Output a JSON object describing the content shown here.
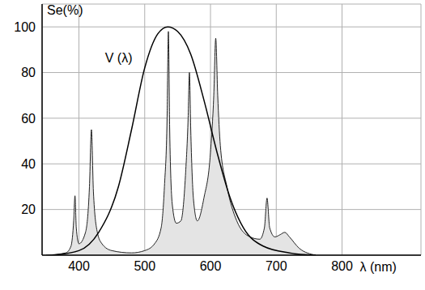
{
  "chart_data": {
    "type": "line",
    "y_label": "Se(%)",
    "x_label": "λ (nm)",
    "xlim": [
      344,
      920
    ],
    "xticks": [
      400,
      500,
      600,
      700,
      800
    ],
    "ylim": [
      0,
      110
    ],
    "yticks": [
      20,
      40,
      60,
      80,
      100
    ],
    "grid": true,
    "series": [
      {
        "type": "area",
        "color": "#222222",
        "x": [
          350,
          380,
          388,
          392,
          394,
          396,
          400,
          410,
          416,
          419,
          422,
          428,
          435,
          450,
          480,
          500,
          515,
          525,
          530,
          534,
          536,
          538,
          542,
          548,
          555,
          562,
          566,
          568,
          570,
          574,
          580,
          590,
          600,
          605,
          608,
          611,
          615,
          625,
          640,
          660,
          675,
          682,
          686,
          690,
          698,
          706,
          713,
          720,
          735,
          760
        ],
        "values": [
          0,
          1,
          4,
          15,
          26,
          12,
          5,
          10,
          30,
          55,
          28,
          10,
          5,
          2,
          1,
          2,
          5,
          12,
          30,
          60,
          98,
          55,
          22,
          14,
          15,
          35,
          60,
          80,
          55,
          25,
          15,
          25,
          45,
          70,
          95,
          70,
          48,
          30,
          15,
          8,
          7,
          12,
          25,
          12,
          8,
          9,
          10,
          8,
          3,
          0
        ]
      },
      {
        "type": "line",
        "name": "V (λ)",
        "color": "#000000",
        "x": [
          360,
          400,
          430,
          460,
          480,
          500,
          520,
          535,
          550,
          570,
          590,
          610,
          630,
          650,
          680,
          720,
          760
        ],
        "values": [
          0,
          2,
          10,
          30,
          55,
          82,
          97,
          100,
          98,
          88,
          68,
          45,
          25,
          12,
          4,
          1,
          0
        ]
      }
    ]
  }
}
